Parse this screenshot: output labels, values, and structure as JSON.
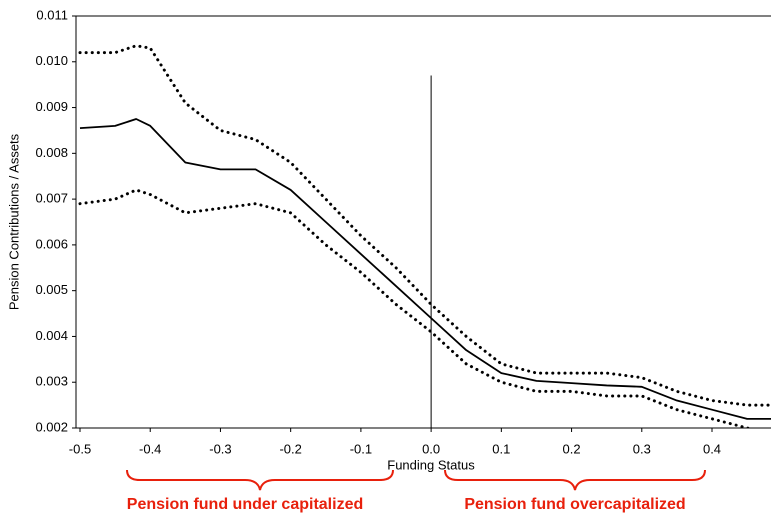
{
  "chart_data": {
    "type": "line",
    "xlabel": "Funding Status",
    "ylabel": "Pension Contributions / Assets",
    "x": [
      -0.5,
      -0.45,
      -0.42,
      -0.4,
      -0.35,
      -0.3,
      -0.25,
      -0.2,
      -0.15,
      -0.1,
      -0.05,
      0.0,
      0.05,
      0.1,
      0.15,
      0.2,
      0.25,
      0.3,
      0.35,
      0.4,
      0.45,
      0.484
    ],
    "series": [
      {
        "color": "#000000",
        "style": "solid",
        "values": [
          0.00855,
          0.0086,
          0.00875,
          0.0086,
          0.0078,
          0.00765,
          0.00765,
          0.0072,
          0.0065,
          0.0058,
          0.0051,
          0.0044,
          0.0037,
          0.0032,
          0.00303,
          0.00298,
          0.00293,
          0.0029,
          0.0026,
          0.0024,
          0.0022,
          0.0022
        ]
      },
      {
        "color": "#000000",
        "style": "dotted",
        "values": [
          0.0102,
          0.0102,
          0.01035,
          0.0103,
          0.0091,
          0.0085,
          0.0083,
          0.0078,
          0.007,
          0.0062,
          0.0055,
          0.0047,
          0.004,
          0.0034,
          0.0032,
          0.0032,
          0.0032,
          0.0031,
          0.0028,
          0.0026,
          0.0025,
          0.0025
        ]
      },
      {
        "color": "#000000",
        "style": "dotted",
        "values": [
          0.0069,
          0.007,
          0.0072,
          0.0071,
          0.0067,
          0.0068,
          0.0069,
          0.0067,
          0.006,
          0.0054,
          0.0047,
          0.0041,
          0.0034,
          0.003,
          0.0028,
          0.0028,
          0.0027,
          0.0027,
          0.0024,
          0.0022,
          0.002,
          0.0019
        ]
      }
    ],
    "xlim": [
      -0.5,
      0.484
    ],
    "ylim": [
      0.002,
      0.011
    ],
    "xticks": [
      -0.5,
      -0.4,
      -0.3,
      -0.2,
      -0.1,
      {
        "value": 0,
        "label": "0.0"
      },
      0.1,
      0.2,
      0.3,
      0.4
    ],
    "yticks": [
      0.002,
      0.003,
      0.004,
      0.005,
      0.006,
      0.007,
      0.008,
      0.009,
      {
        "value": 0.01,
        "label": "0.010"
      },
      0.011
    ],
    "vline": {
      "x": 0,
      "top": 0.0097
    },
    "annotations": [
      "Pension fund under capitalized",
      "Pension fund overcapitalized"
    ]
  }
}
